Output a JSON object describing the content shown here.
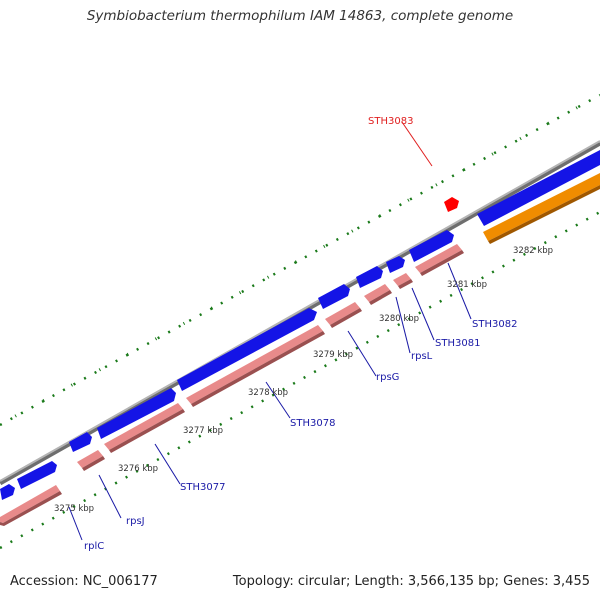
{
  "title": "Symbiobacterium thermophilum IAM 14863, complete genome",
  "footer": {
    "accession": "Accession: NC_006177",
    "topology": "Topology: circular; Length: 3,566,135 bp; Genes: 3,455"
  },
  "scale_labels": [
    "3275 kbp",
    "3276 kbp",
    "3277 kbp",
    "3278 kbp",
    "3279 kbp",
    "3280 kbp",
    "3281 kbp",
    "3282 kbp"
  ],
  "gene_labels": [
    {
      "text": "rplC",
      "color": "#1a1aa6"
    },
    {
      "text": "rpsJ",
      "color": "#1a1aa6"
    },
    {
      "text": "STH3077",
      "color": "#1a1aa6"
    },
    {
      "text": "STH3078",
      "color": "#1a1aa6"
    },
    {
      "text": "rpsG",
      "color": "#1a1aa6"
    },
    {
      "text": "rpsL",
      "color": "#1a1aa6"
    },
    {
      "text": "STH3081",
      "color": "#1a1aa6"
    },
    {
      "text": "STH3082",
      "color": "#1a1aa6"
    },
    {
      "text": "STH3083",
      "color": "#e02020"
    }
  ],
  "colors": {
    "backbone": "#8c8c8c",
    "forward_gene": "#1414e6",
    "reverse_gene": "#e88a8a",
    "orange_gene": "#f08c00",
    "tick": "#1a7a1a",
    "highlight": "#ff0000"
  }
}
